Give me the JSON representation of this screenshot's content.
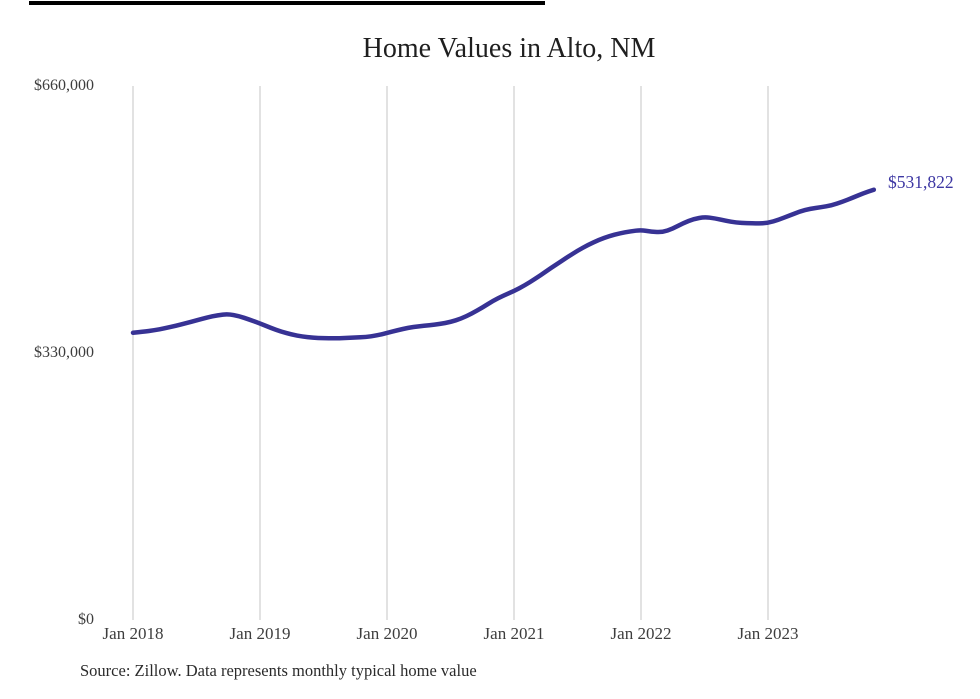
{
  "chart": {
    "title": "Home Values in Alto, NM",
    "end_label": "$531,822",
    "source": "Source: Zillow. Data represents monthly typical home value",
    "colors": {
      "line": "#373294",
      "end_label": "#3d37a3",
      "grid": "#c6c6c6",
      "title_text": "#1f1f1f",
      "axis_text": "#3d3d3d",
      "source_text": "#2b2b2b",
      "background": "#ffffff",
      "top_rule": "#000000"
    }
  },
  "chart_data": {
    "type": "line",
    "title": "Home Values in Alto, NM",
    "x_start": "Jan 2018",
    "x_frequency": "monthly",
    "x_end": "Nov 2023",
    "x_tick_labels": [
      "Jan 2018",
      "Jan 2019",
      "Jan 2020",
      "Jan 2021",
      "Jan 2022",
      "Jan 2023"
    ],
    "y_ticks": [
      0,
      330000,
      660000
    ],
    "y_tick_labels": [
      "$0",
      "$330,000",
      "$660,000"
    ],
    "ylim": [
      0,
      660000
    ],
    "grid": "vertical-only",
    "legend": "none",
    "final_value": 531822,
    "final_value_label": "$531,822",
    "source": "Source: Zillow. Data represents monthly typical home value",
    "series": [
      {
        "name": "Typical home value (USD)",
        "values": [
          355000,
          356300,
          358100,
          360500,
          363400,
          366800,
          370400,
          373900,
          376700,
          378200,
          375600,
          371300,
          366500,
          361200,
          356400,
          352700,
          350300,
          348900,
          348300,
          348200,
          348500,
          349000,
          349800,
          351600,
          354700,
          358200,
          361100,
          363100,
          364400,
          365800,
          368300,
          372500,
          378600,
          386100,
          394300,
          400900,
          406600,
          413500,
          421800,
          430600,
          439400,
          448100,
          456400,
          463700,
          469800,
          474500,
          478000,
          480400,
          482000,
          479800,
          479200,
          483600,
          490500,
          495700,
          498100,
          496400,
          493400,
          491200,
          490300,
          490200,
          490700,
          494600,
          499800,
          504900,
          508300,
          510200,
          512400,
          516800,
          521900,
          527400,
          531822
        ]
      }
    ]
  }
}
